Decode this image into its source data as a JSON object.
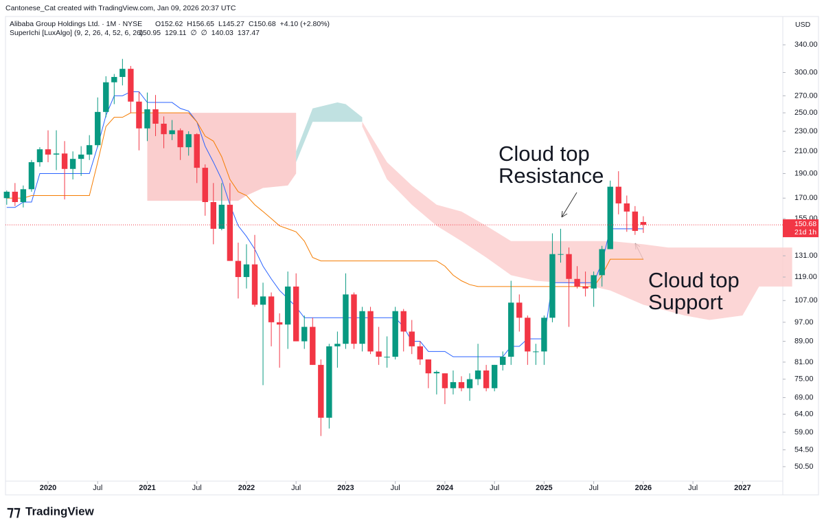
{
  "header": {
    "credit": "Cantonese_Cat created with TradingView.com, Jan 09, 2026 20:37 UTC",
    "symbol": "Alibaba Group Holdings Ltd. · 1M · NYSE",
    "o": "O152.62",
    "h": "H156.65",
    "l": "L145.27",
    "c": "C150.68",
    "change": "+4.10 (+2.80%)",
    "indicator": "SuperIchi [LuxAlgo] (9, 2, 26, 4, 52, 6, 26)",
    "indicator_values": [
      {
        "text": "150.95",
        "color": "#2962ff"
      },
      {
        "text": "129.11",
        "color": "#f57c00"
      },
      {
        "text": "∅",
        "color": "#131722"
      },
      {
        "text": "∅",
        "color": "#131722"
      },
      {
        "text": "140.03",
        "color": "#2962ff"
      },
      {
        "text": "137.47",
        "color": "#2962ff"
      }
    ],
    "currency": "USD",
    "logo": "TradingView"
  },
  "chart_data": {
    "type": "candlestick",
    "log": true,
    "ylim": [
      47.3,
      362
    ],
    "yticks": [
      {
        "value": 340,
        "label": "340.00"
      },
      {
        "value": 300,
        "label": "300.00"
      },
      {
        "value": 270,
        "label": "270.00"
      },
      {
        "value": 250,
        "label": "250.00"
      },
      {
        "value": 230,
        "label": "230.00"
      },
      {
        "value": 210,
        "label": "210.00"
      },
      {
        "value": 190,
        "label": "190.00"
      },
      {
        "value": 170,
        "label": "170.00"
      },
      {
        "value": 155,
        "label": "155.00"
      },
      {
        "value": 131,
        "label": "131.00"
      },
      {
        "value": 119,
        "label": "119.00"
      },
      {
        "value": 107,
        "label": "107.00"
      },
      {
        "value": 97,
        "label": "97.00"
      },
      {
        "value": 89,
        "label": "89.00"
      },
      {
        "value": 81,
        "label": "81.00"
      },
      {
        "value": 75,
        "label": "75.00"
      },
      {
        "value": 69,
        "label": "69.00"
      },
      {
        "value": 64,
        "label": "64.00"
      },
      {
        "value": 59,
        "label": "59.00"
      },
      {
        "value": 54.5,
        "label": "54.50"
      },
      {
        "value": 50.5,
        "label": "50.50"
      }
    ],
    "xlim": [
      "2019-08",
      "2027-07"
    ],
    "xticks": [
      {
        "value": "2020-01",
        "label": "2020"
      },
      {
        "value": "2020-07",
        "label": "Jul"
      },
      {
        "value": "2021-01",
        "label": "2021"
      },
      {
        "value": "2021-07",
        "label": "Jul"
      },
      {
        "value": "2022-01",
        "label": "2022"
      },
      {
        "value": "2022-07",
        "label": "Jul"
      },
      {
        "value": "2023-01",
        "label": "2023"
      },
      {
        "value": "2023-07",
        "label": "Jul"
      },
      {
        "value": "2024-01",
        "label": "2024"
      },
      {
        "value": "2024-07",
        "label": "Jul"
      },
      {
        "value": "2025-01",
        "label": "2025"
      },
      {
        "value": "2025-07",
        "label": "Jul"
      },
      {
        "value": "2026-01",
        "label": "2026"
      },
      {
        "value": "2026-07",
        "label": "Jul"
      },
      {
        "value": "2027-01",
        "label": "2027"
      }
    ],
    "up_color": "#089981",
    "down_color": "#f23645",
    "x": [
      "2019-08",
      "2019-09",
      "2019-10",
      "2019-11",
      "2019-12",
      "2020-01",
      "2020-02",
      "2020-03",
      "2020-04",
      "2020-05",
      "2020-06",
      "2020-07",
      "2020-08",
      "2020-09",
      "2020-10",
      "2020-11",
      "2020-12",
      "2021-01",
      "2021-02",
      "2021-03",
      "2021-04",
      "2021-05",
      "2021-06",
      "2021-07",
      "2021-08",
      "2021-09",
      "2021-10",
      "2021-11",
      "2021-12",
      "2022-01",
      "2022-02",
      "2022-03",
      "2022-04",
      "2022-05",
      "2022-06",
      "2022-07",
      "2022-08",
      "2022-09",
      "2022-10",
      "2022-11",
      "2022-12",
      "2023-01",
      "2023-02",
      "2023-03",
      "2023-04",
      "2023-05",
      "2023-06",
      "2023-07",
      "2023-08",
      "2023-09",
      "2023-10",
      "2023-11",
      "2023-12",
      "2024-01",
      "2024-02",
      "2024-03",
      "2024-04",
      "2024-05",
      "2024-06",
      "2024-07",
      "2024-08",
      "2024-09",
      "2024-10",
      "2024-11",
      "2024-12",
      "2025-01",
      "2025-02",
      "2025-03",
      "2025-04",
      "2025-05",
      "2025-06",
      "2025-07",
      "2025-08",
      "2025-09",
      "2025-10",
      "2025-11",
      "2025-12",
      "2026-01"
    ],
    "open": [
      170,
      175,
      167,
      177,
      200,
      212,
      207,
      208,
      194,
      203,
      207,
      216,
      251,
      287,
      294,
      305,
      263,
      233,
      254,
      238,
      227,
      231,
      214,
      227,
      195,
      167,
      148,
      165,
      128,
      119,
      126,
      105,
      109,
      97,
      96,
      114,
      89,
      95,
      80,
      63,
      87,
      88,
      110,
      88,
      102,
      85,
      83,
      83,
      102,
      93,
      87,
      82,
      77,
      77,
      72,
      74,
      72,
      75,
      78,
      72,
      80,
      83,
      106,
      99,
      85,
      85,
      99,
      132,
      132,
      118,
      114,
      113,
      120,
      135,
      179,
      166,
      160,
      152.62
    ],
    "high": [
      176,
      182,
      180,
      202,
      214,
      231,
      231,
      220,
      210,
      215,
      226,
      268,
      295,
      298,
      319,
      309,
      275,
      274,
      271,
      246,
      242,
      233,
      230,
      228,
      198,
      182,
      182,
      182,
      139,
      138,
      144,
      116,
      111,
      101,
      122,
      121,
      100,
      99,
      82,
      88,
      93,
      121,
      111,
      104,
      104,
      95,
      91,
      104,
      103,
      98,
      89,
      82,
      78,
      77,
      78,
      76,
      77,
      88,
      80,
      80,
      85,
      117,
      110,
      100,
      88,
      100,
      145,
      148,
      136,
      125,
      122,
      122,
      137,
      184,
      192,
      172,
      164,
      156.65
    ],
    "low": [
      165,
      164,
      163,
      175,
      196,
      200,
      193,
      169,
      185,
      188,
      202,
      214,
      245,
      260,
      283,
      250,
      211,
      220,
      225,
      213,
      221,
      202,
      206,
      182,
      157,
      138,
      147,
      128,
      108,
      113,
      104,
      73,
      87,
      79,
      86,
      89,
      86,
      80,
      58,
      60,
      79,
      86,
      86,
      85,
      84,
      80,
      79,
      82,
      85,
      84,
      80,
      72,
      70,
      67,
      70,
      71,
      68,
      73,
      71,
      71,
      78,
      80,
      93,
      80,
      80,
      80,
      97,
      127,
      95,
      113,
      109,
      104,
      114,
      135,
      158,
      146,
      144,
      145.27
    ],
    "close": [
      175,
      167,
      177,
      200,
      212,
      207,
      208,
      194,
      203,
      207,
      216,
      251,
      287,
      294,
      305,
      263,
      233,
      254,
      238,
      227,
      231,
      214,
      227,
      195,
      167,
      148,
      165,
      128,
      119,
      126,
      105,
      109,
      97,
      96,
      114,
      89,
      95,
      80,
      63,
      87,
      88,
      110,
      88,
      102,
      85,
      83,
      83,
      102,
      93,
      87,
      82,
      77,
      77.5,
      72,
      74,
      72,
      75,
      78,
      72,
      80,
      83,
      106,
      99,
      85,
      85,
      99,
      132,
      132,
      118,
      114,
      113,
      120,
      135,
      179,
      166,
      160,
      146.6,
      150.68
    ],
    "series": [
      {
        "color": "#2962ff",
        "values": [
          163,
          163,
          167,
          167,
          190,
          190,
          190,
          190,
          190,
          190,
          190,
          215,
          247,
          270,
          270,
          275,
          275,
          262,
          262,
          262,
          262,
          255,
          252,
          240,
          215,
          200,
          185,
          165,
          150,
          143,
          135,
          125,
          118,
          112,
          108,
          104,
          99,
          99,
          99,
          99,
          99,
          99,
          99,
          99,
          99,
          99,
          99,
          99,
          95,
          89,
          89,
          85,
          85,
          85,
          83,
          83,
          83,
          83,
          83,
          83,
          83,
          87,
          87,
          90,
          90,
          90,
          116,
          116,
          116,
          116,
          116,
          116,
          127,
          148,
          148,
          148,
          148,
          148
        ]
      },
      {
        "color": "#f57c00",
        "values": [
          170,
          170,
          170,
          172,
          172,
          172,
          172,
          172,
          172,
          172,
          172,
          200,
          235,
          245,
          245,
          250,
          250,
          250,
          250,
          250,
          250,
          250,
          250,
          240,
          225,
          220,
          205,
          185,
          175,
          172,
          165,
          160,
          155,
          150,
          148,
          146,
          140,
          130,
          128,
          128,
          128,
          128,
          128,
          128,
          128,
          128,
          128,
          128,
          128,
          128,
          128,
          128,
          128,
          125,
          120,
          117,
          115,
          114,
          114,
          114,
          114,
          114,
          114,
          114,
          114,
          114,
          114,
          114,
          114,
          114,
          114,
          114,
          120,
          129,
          129,
          129,
          129,
          129
        ]
      }
    ],
    "cloud": [
      {
        "color": "#f9c5c5",
        "x": [
          "2021-01",
          "2021-12",
          "2022-01",
          "2022-03",
          "2022-06",
          "2022-07"
        ],
        "upper": [
          250,
          250,
          250,
          250,
          250,
          250
        ],
        "lower": [
          168,
          168,
          172,
          178,
          180,
          190
        ]
      },
      {
        "color": "#b5dcdc",
        "x": [
          "2022-07",
          "2022-09",
          "2022-12",
          "2023-01",
          "2023-03"
        ],
        "upper": [
          210,
          255,
          262,
          260,
          245
        ],
        "lower": [
          200,
          240,
          240,
          240,
          240
        ]
      },
      {
        "color": "#fbcfcf",
        "x": [
          "2023-03",
          "2023-06",
          "2023-09",
          "2023-12",
          "2024-03",
          "2024-06",
          "2024-09",
          "2024-12",
          "2025-06",
          "2025-09",
          "2026-01",
          "2026-04",
          "2026-06",
          "2026-09",
          "2027-01",
          "2027-03",
          "2027-07"
        ],
        "upper": [
          240,
          200,
          180,
          165,
          160,
          150,
          140,
          140,
          140,
          140,
          138,
          136,
          136,
          136,
          136,
          136,
          136
        ],
        "lower": [
          235,
          185,
          165,
          150,
          140,
          130,
          120,
          117,
          115,
          112,
          105,
          102,
          100,
          98,
          100,
          114,
          114
        ]
      }
    ],
    "last_price": {
      "value": 150.68,
      "label": "150.68",
      "countdown": "21d 1h"
    },
    "annotations": [
      {
        "lines": [
          "Cloud top",
          "Resistance"
        ]
      },
      {
        "lines": [
          "Cloud top",
          "Support"
        ]
      }
    ]
  }
}
